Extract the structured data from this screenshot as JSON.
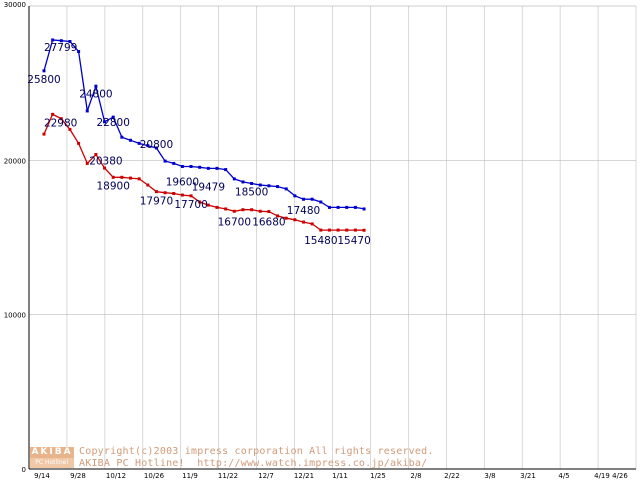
{
  "chart_data": {
    "type": "line",
    "title": "",
    "xlabel": "",
    "ylabel": "",
    "ylim": [
      0,
      30000
    ],
    "yticks": [
      "0",
      "10000",
      "20000",
      "30000"
    ],
    "grid": true,
    "xtick_labels": [
      "9/14",
      "9/28",
      "10/12",
      "10/26",
      "11/9",
      "11/22",
      "12/7",
      "12/21",
      "1/11",
      "1/25",
      "2/8",
      "2/22",
      "3/8",
      "3/21",
      "4/5",
      "4/19",
      "4/26"
    ],
    "series": [
      {
        "color": "#0000cc",
        "values": [
          25800,
          27799,
          27750,
          27700,
          27050,
          23200,
          24800,
          22500,
          22800,
          21500,
          21300,
          21100,
          20950,
          20800,
          19950,
          19800,
          19600,
          19600,
          19550,
          19479,
          19479,
          19400,
          18800,
          18600,
          18500,
          18400,
          18350,
          18300,
          18150,
          17700,
          17480,
          17480,
          17300,
          16950,
          16950,
          16950,
          16950,
          16850
        ]
      },
      {
        "color": "#cc0000",
        "values": [
          21700,
          22980,
          22700,
          22000,
          21100,
          19800,
          20380,
          19500,
          18900,
          18900,
          18850,
          18800,
          18400,
          17970,
          17900,
          17850,
          17750,
          17700,
          17300,
          17100,
          16950,
          16850,
          16700,
          16800,
          16800,
          16700,
          16680,
          16400,
          16250,
          16150,
          16000,
          15880,
          15480,
          15480,
          15480,
          15480,
          15480,
          15470
        ]
      }
    ],
    "data_labels": [
      {
        "text": "25800",
        "index": 0,
        "series": 0
      },
      {
        "text": "27799",
        "index": 1,
        "series": 0
      },
      {
        "text": "24800",
        "index": 6,
        "series": 0
      },
      {
        "text": "22800",
        "index": 8,
        "series": 0
      },
      {
        "text": "20800",
        "index": 13,
        "series": 0
      },
      {
        "text": "19600",
        "index": 16,
        "series": 0
      },
      {
        "text": "19479",
        "index": 19,
        "series": 0
      },
      {
        "text": "18500",
        "index": 24,
        "series": 0
      },
      {
        "text": "17480",
        "index": 30,
        "series": 0
      },
      {
        "text": "22980",
        "index": 1,
        "series": 1
      },
      {
        "text": "20380",
        "index": 6,
        "series": 1
      },
      {
        "text": "18900",
        "index": 8,
        "series": 1
      },
      {
        "text": "17970",
        "index": 13,
        "series": 1
      },
      {
        "text": "17700",
        "index": 17,
        "series": 1
      },
      {
        "text": "16700",
        "index": 22,
        "series": 1
      },
      {
        "text": "16680",
        "index": 26,
        "series": 1
      },
      {
        "text": "15480",
        "index": 32,
        "series": 1
      },
      {
        "text": "15470",
        "index": 37,
        "series": 1
      }
    ]
  },
  "watermark": {
    "logo_top": "AKIBA",
    "logo_bottom": "PC Hotline!",
    "copyright_line1": "Copyright(c)2003 impress corporation All rights reserved.",
    "copyright_line2": "AKIBA PC Hotline!  http://www.watch.impress.co.jp/akiba/"
  }
}
